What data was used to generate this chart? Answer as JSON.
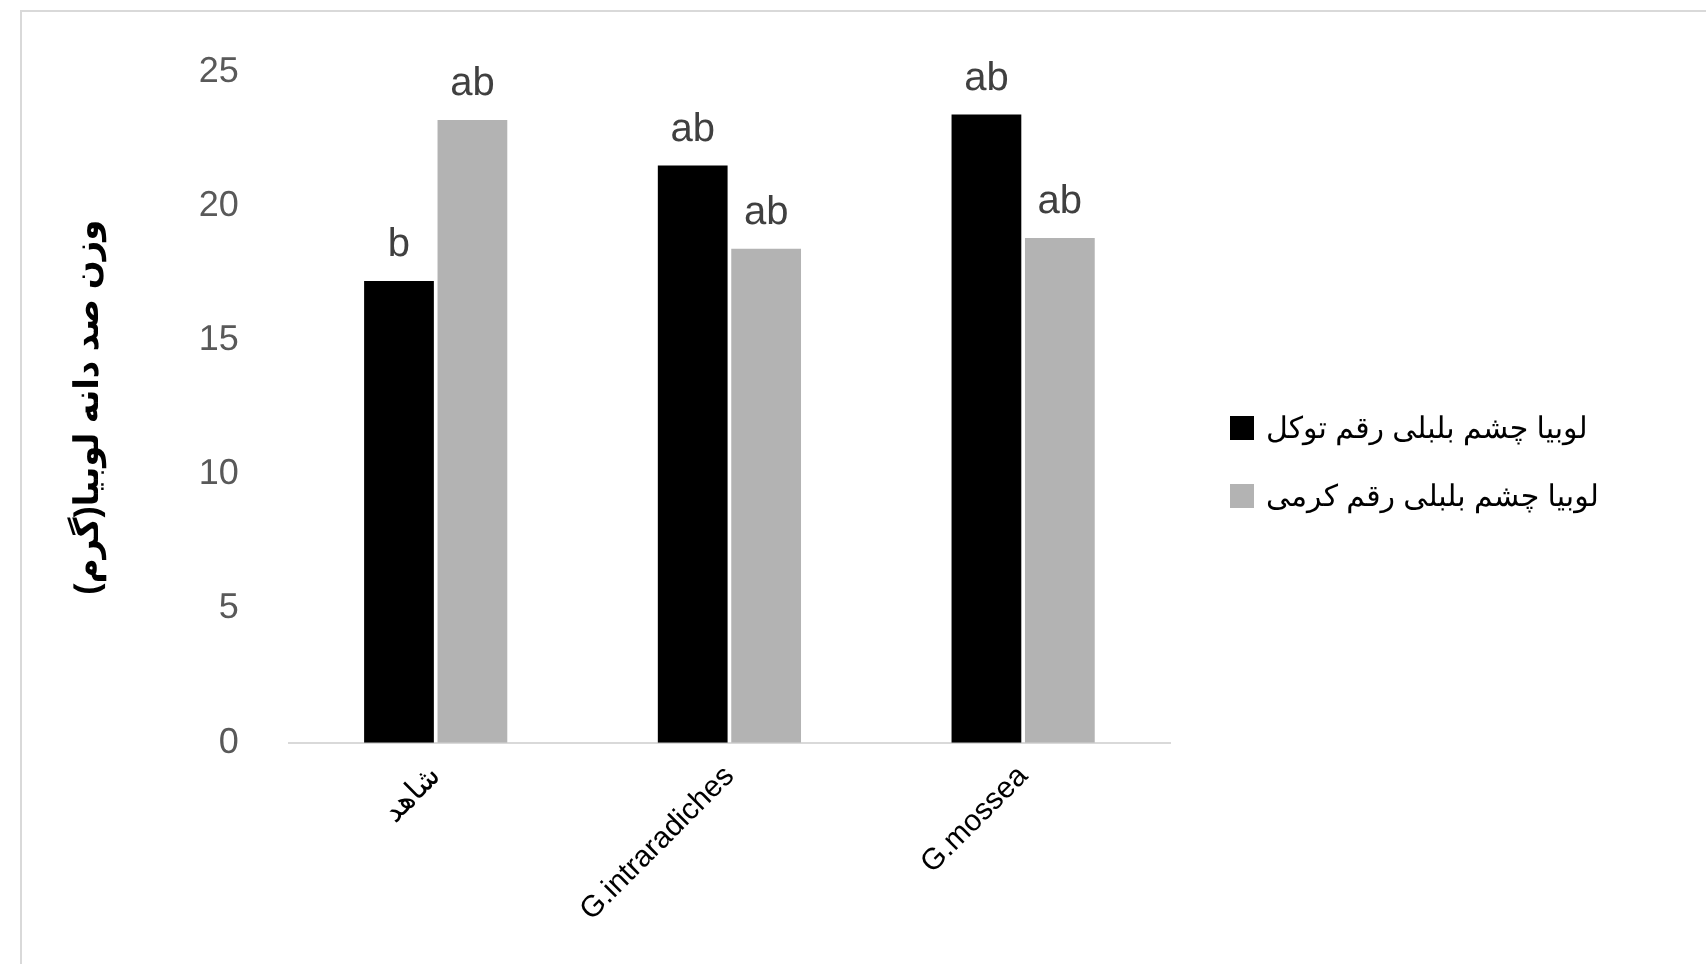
{
  "chart_data": {
    "type": "bar",
    "ylabel": "وزن صد دانه لوبیا(گرم)",
    "categories": [
      "شاهد",
      "G.intraradiches",
      "G.mossea"
    ],
    "series": [
      {
        "name": "لوبیا چشم بلبلی رقم توکل",
        "color": "#000000",
        "values": [
          17.2,
          21.5,
          23.4
        ],
        "value_labels": [
          "b",
          "ab",
          "ab"
        ]
      },
      {
        "name": "لوبیا چشم بلبلی رقم کرمی",
        "color": "#b3b3b3",
        "values": [
          23.2,
          18.4,
          18.8
        ],
        "value_labels": [
          "ab",
          "ab",
          "ab"
        ]
      }
    ],
    "ylim": [
      0,
      25
    ],
    "yticks": [
      0,
      5,
      10,
      15,
      20,
      25
    ],
    "grid": false,
    "legend": "right"
  }
}
